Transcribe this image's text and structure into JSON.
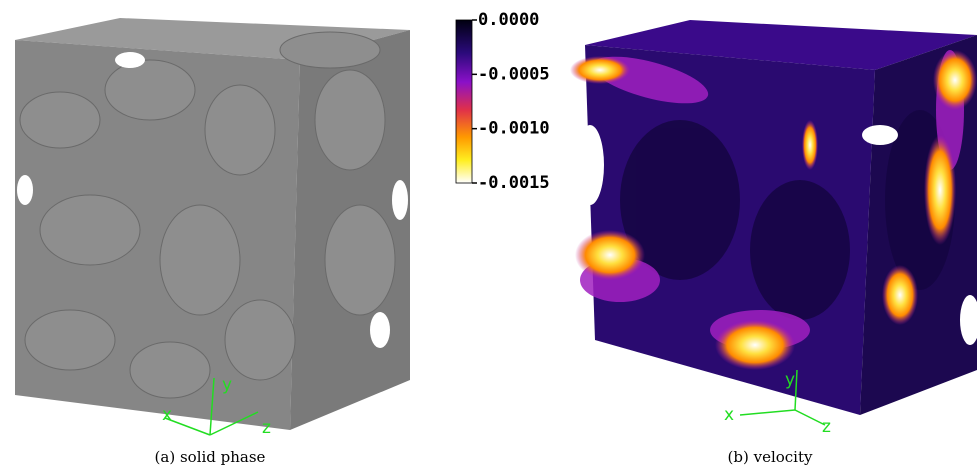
{
  "panel_a": {
    "caption": "(a) solid phase",
    "axes": {
      "x": "x",
      "y": "y",
      "z": "z"
    }
  },
  "panel_b": {
    "caption": "(b) velocity",
    "axes": {
      "x": "x",
      "y": "y",
      "z": "z"
    }
  },
  "colorbar": {
    "ticks": [
      {
        "value": 0,
        "label": "0.0000"
      },
      {
        "value": -0.0005,
        "label": "-0.0005"
      },
      {
        "value": -0.001,
        "label": "-0.0010"
      },
      {
        "value": -0.0015,
        "label": "-0.0015"
      }
    ]
  }
}
